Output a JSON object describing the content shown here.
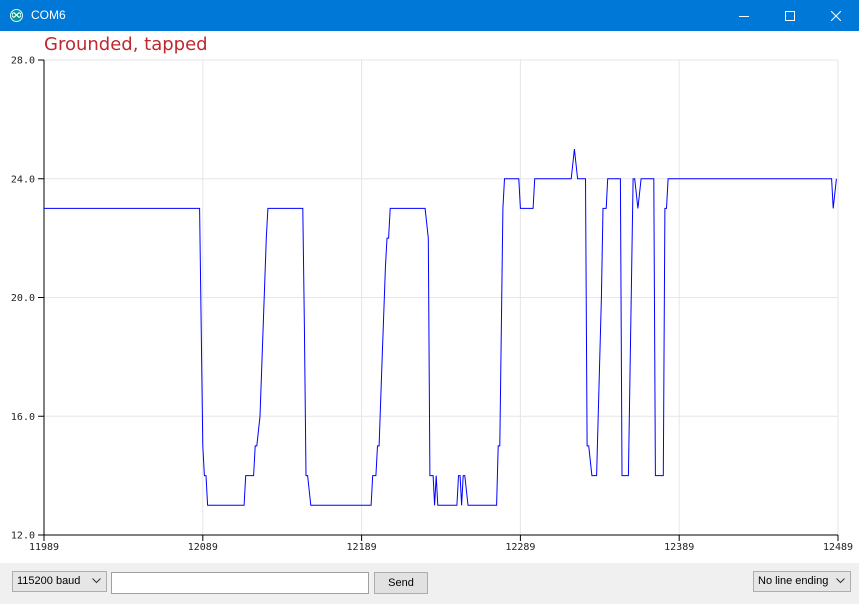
{
  "window": {
    "title": "COM6",
    "titlebar_color": "#0078d7",
    "icons": [
      "arduino-icon",
      "minimize-icon",
      "maximize-icon",
      "close-icon"
    ]
  },
  "plot_title": "Grounded, tapped",
  "chart_data": {
    "type": "line",
    "title": "Grounded, tapped",
    "xlim": [
      11989,
      12489
    ],
    "ylim": [
      12.0,
      28.0
    ],
    "x_ticks": [
      "11989",
      "12089",
      "12189",
      "12289",
      "12389",
      "12489"
    ],
    "y_ticks": [
      "12.0",
      "16.0",
      "20.0",
      "24.0",
      "28.0"
    ],
    "grid": true,
    "series": [
      {
        "color": "#0000ff",
        "points": [
          [
            11989,
            23
          ],
          [
            12087,
            23
          ],
          [
            12089,
            15
          ],
          [
            12090,
            14
          ],
          [
            12091,
            14
          ],
          [
            12092,
            13
          ],
          [
            12115,
            13
          ],
          [
            12116,
            14
          ],
          [
            12121,
            14
          ],
          [
            12122,
            15
          ],
          [
            12123,
            15
          ],
          [
            12125,
            16
          ],
          [
            12129,
            22
          ],
          [
            12130,
            23
          ],
          [
            12152,
            23
          ],
          [
            12153,
            19
          ],
          [
            12154,
            14
          ],
          [
            12155,
            14
          ],
          [
            12157,
            13
          ],
          [
            12195,
            13
          ],
          [
            12196,
            14
          ],
          [
            12198,
            14
          ],
          [
            12199,
            15
          ],
          [
            12200,
            15
          ],
          [
            12202,
            18
          ],
          [
            12204,
            21
          ],
          [
            12205,
            22
          ],
          [
            12206,
            22
          ],
          [
            12207,
            23
          ],
          [
            12229,
            23
          ],
          [
            12231,
            22
          ],
          [
            12232,
            14
          ],
          [
            12234,
            14
          ],
          [
            12235,
            13
          ],
          [
            12236,
            14
          ],
          [
            12237,
            13
          ],
          [
            12249,
            13
          ],
          [
            12250,
            14
          ],
          [
            12251,
            14
          ],
          [
            12252,
            13
          ],
          [
            12253,
            14
          ],
          [
            12254,
            14
          ],
          [
            12256,
            13
          ],
          [
            12274,
            13
          ],
          [
            12275,
            15
          ],
          [
            12276,
            15
          ],
          [
            12278,
            23
          ],
          [
            12279,
            24
          ],
          [
            12288,
            24
          ],
          [
            12289,
            23
          ],
          [
            12297,
            23
          ],
          [
            12298,
            24
          ],
          [
            12321,
            24
          ],
          [
            12323,
            25
          ],
          [
            12325,
            24
          ],
          [
            12330,
            24
          ],
          [
            12331,
            15
          ],
          [
            12332,
            15
          ],
          [
            12334,
            14
          ],
          [
            12337,
            14
          ],
          [
            12340,
            20
          ],
          [
            12341,
            23
          ],
          [
            12343,
            23
          ],
          [
            12344,
            24
          ],
          [
            12352,
            24
          ],
          [
            12353,
            14
          ],
          [
            12357,
            14
          ],
          [
            12360,
            24
          ],
          [
            12361,
            24
          ],
          [
            12363,
            23
          ],
          [
            12365,
            24
          ],
          [
            12373,
            24
          ],
          [
            12374,
            14
          ],
          [
            12379,
            14
          ],
          [
            12380,
            23
          ],
          [
            12381,
            23
          ],
          [
            12382,
            24
          ],
          [
            12485,
            24
          ],
          [
            12486,
            23
          ],
          [
            12488,
            24
          ]
        ]
      }
    ]
  },
  "bottom_bar": {
    "baud_value": "115200 baud",
    "input_value": "",
    "input_placeholder": "",
    "send_label": "Send",
    "line_ending_value": "No line ending"
  }
}
